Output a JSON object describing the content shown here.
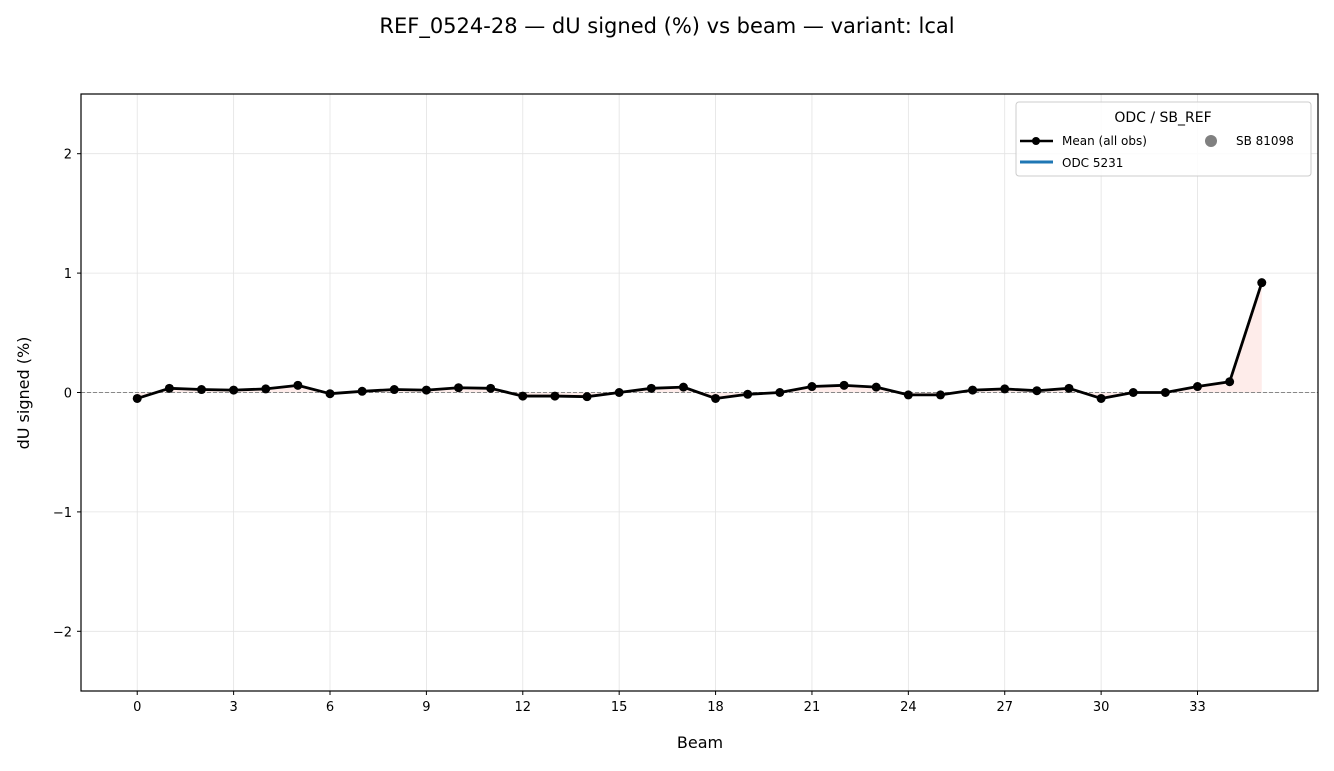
{
  "chart_data": {
    "type": "line",
    "title": "REF_0524-28  —  dU signed (%) vs beam  —  variant: lcal",
    "xlabel": "Beam",
    "ylabel": "dU signed (%)",
    "xlim": [
      -1.75,
      36.75
    ],
    "ylim": [
      -2.5,
      2.5
    ],
    "xticks": [
      0,
      3,
      6,
      9,
      12,
      15,
      18,
      21,
      24,
      27,
      30,
      33
    ],
    "yticks": [
      -2,
      -1,
      0,
      1,
      2
    ],
    "ytick_labels": [
      "−2",
      "−1",
      "0",
      "1",
      "2"
    ],
    "grid": true,
    "reference_line": 0,
    "legend": {
      "title": "ODC / SB_REF",
      "placement": "top-right",
      "entries": [
        {
          "label": "Mean (all obs)",
          "style": "line-marker",
          "color": "#000000"
        },
        {
          "label": "ODC 5231",
          "style": "line",
          "color": "#1f77b4"
        },
        {
          "label": "SB 81098",
          "style": "marker",
          "color": "#808080"
        }
      ]
    },
    "series": [
      {
        "name": "Mean (all obs)",
        "color": "#000000",
        "fill_color": "#fde0dc",
        "x": [
          0,
          1,
          2,
          3,
          4,
          5,
          6,
          7,
          8,
          9,
          10,
          11,
          12,
          13,
          14,
          15,
          16,
          17,
          18,
          19,
          20,
          21,
          22,
          23,
          24,
          25,
          26,
          27,
          28,
          29,
          30,
          31,
          32,
          33,
          34,
          35
        ],
        "y": [
          -0.05,
          0.035,
          0.025,
          0.02,
          0.03,
          0.06,
          -0.01,
          0.01,
          0.025,
          0.02,
          0.04,
          0.035,
          -0.03,
          -0.03,
          -0.035,
          0.0,
          0.035,
          0.045,
          -0.05,
          -0.015,
          0.0,
          0.05,
          0.06,
          0.045,
          -0.02,
          -0.02,
          0.02,
          0.03,
          0.015,
          0.035,
          -0.05,
          0.0,
          0.0,
          0.05,
          0.09,
          0.92
        ]
      }
    ]
  }
}
